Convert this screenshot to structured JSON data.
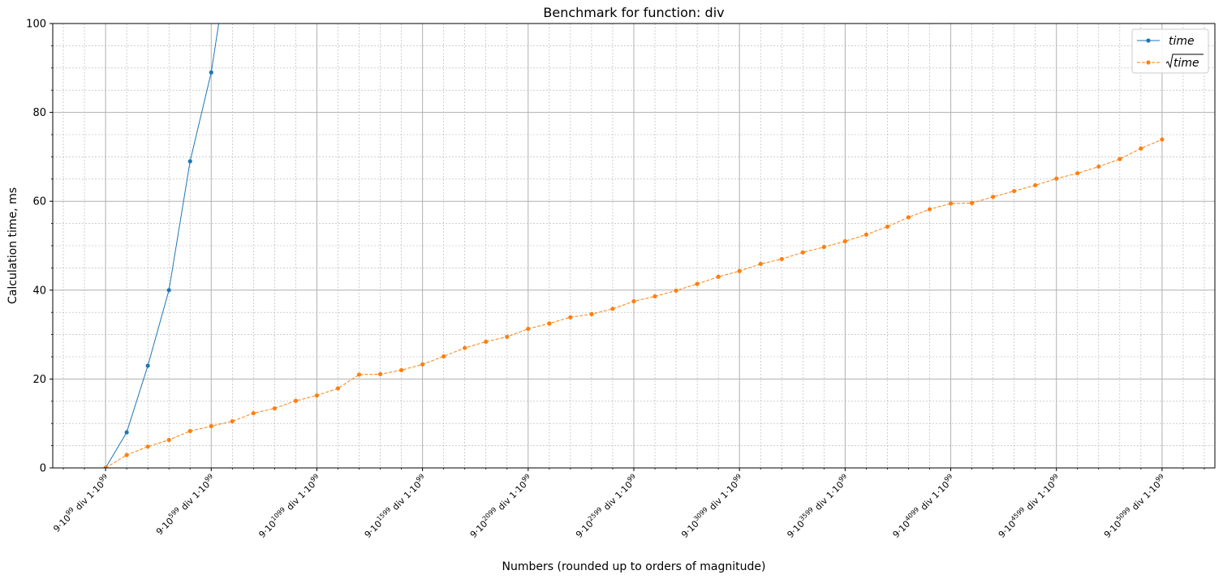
{
  "chart_data": {
    "type": "line",
    "title": "Benchmark for function: div",
    "xlabel": "Numbers (rounded up to orders of magnitude)",
    "ylabel": "Calculation time, ms",
    "ylim": [
      0,
      100
    ],
    "xlim": [
      -2.5,
      52.5
    ],
    "y_ticks": [
      "0",
      "20",
      "40",
      "60",
      "80",
      "100"
    ],
    "y_tick_values": [
      0,
      20,
      40,
      60,
      80,
      100
    ],
    "x_tick_labels": [
      {
        "mantissa": "9",
        "exp": "99",
        "divisor_mantissa": "1",
        "divisor_exp": "99",
        "op": "div"
      },
      {
        "mantissa": "9",
        "exp": "599",
        "divisor_mantissa": "1",
        "divisor_exp": "99",
        "op": "div"
      },
      {
        "mantissa": "9",
        "exp": "1099",
        "divisor_mantissa": "1",
        "divisor_exp": "99",
        "op": "div"
      },
      {
        "mantissa": "9",
        "exp": "1599",
        "divisor_mantissa": "1",
        "divisor_exp": "99",
        "op": "div"
      },
      {
        "mantissa": "9",
        "exp": "2099",
        "divisor_mantissa": "1",
        "divisor_exp": "99",
        "op": "div"
      },
      {
        "mantissa": "9",
        "exp": "2599",
        "divisor_mantissa": "1",
        "divisor_exp": "99",
        "op": "div"
      },
      {
        "mantissa": "9",
        "exp": "3099",
        "divisor_mantissa": "1",
        "divisor_exp": "99",
        "op": "div"
      },
      {
        "mantissa": "9",
        "exp": "3599",
        "divisor_mantissa": "1",
        "divisor_exp": "99",
        "op": "div"
      },
      {
        "mantissa": "9",
        "exp": "4099",
        "divisor_mantissa": "1",
        "divisor_exp": "99",
        "op": "div"
      },
      {
        "mantissa": "9",
        "exp": "4599",
        "divisor_mantissa": "1",
        "divisor_exp": "99",
        "op": "div"
      },
      {
        "mantissa": "9",
        "exp": "5099",
        "divisor_mantissa": "1",
        "divisor_exp": "99",
        "op": "div"
      }
    ],
    "x_tick_positions": [
      0,
      5,
      10,
      15,
      20,
      25,
      30,
      35,
      40,
      45,
      50
    ],
    "grid": true,
    "legend_position": "top-right",
    "series": [
      {
        "name": "time",
        "legend_label": "time",
        "color": "#1f77b4",
        "style": "solid",
        "x": [
          0,
          1,
          2,
          3,
          4,
          5,
          6
        ],
        "y": [
          0,
          8,
          23,
          40,
          69,
          89,
          120
        ]
      },
      {
        "name": "sqrt_time",
        "legend_label": "time",
        "legend_sqrt": true,
        "color": "#ff7f0e",
        "style": "dashed",
        "x": [
          0,
          1,
          2,
          3,
          4,
          5,
          6,
          7,
          8,
          9,
          10,
          11,
          12,
          13,
          14,
          15,
          16,
          17,
          18,
          19,
          20,
          21,
          22,
          23,
          24,
          25,
          26,
          27,
          28,
          29,
          30,
          31,
          32,
          33,
          34,
          35,
          36,
          37,
          38,
          39,
          40,
          41,
          42,
          43,
          44,
          45,
          46,
          47,
          48,
          49,
          50
        ],
        "y": [
          0,
          2.9,
          4.8,
          6.3,
          8.3,
          9.4,
          10.5,
          12.3,
          13.4,
          15.1,
          16.3,
          17.9,
          21,
          21.1,
          22,
          23.3,
          25.1,
          27,
          28.4,
          29.5,
          31.3,
          32.5,
          33.9,
          34.6,
          35.8,
          37.5,
          38.6,
          39.9,
          41.4,
          43,
          44.3,
          45.9,
          47,
          48.5,
          49.7,
          51,
          52.5,
          54.3,
          56.4,
          58.2,
          59.5,
          59.6,
          61,
          62.3,
          63.6,
          65.1,
          66.3,
          67.8,
          69.5,
          71.9,
          73.9
        ]
      }
    ]
  }
}
